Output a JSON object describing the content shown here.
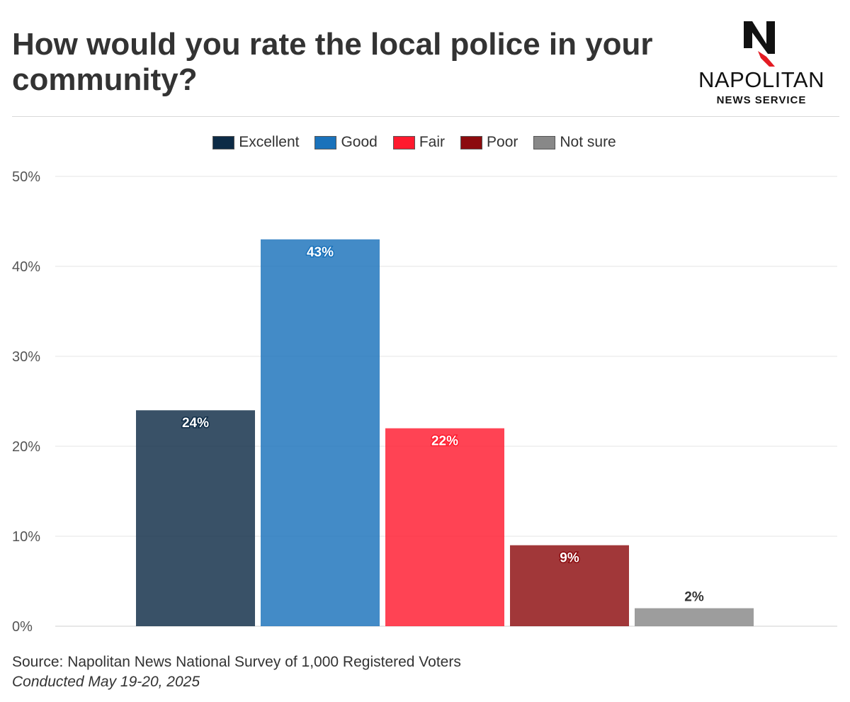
{
  "title": "How would you rate the local police in your community?",
  "brand": {
    "name": "NAPOLITAN",
    "sub": "NEWS SERVICE",
    "mark_letter": "N",
    "colors": {
      "dark": "#111111",
      "accent": "#e31b23"
    }
  },
  "chart_data": {
    "type": "bar",
    "categories": [
      "Excellent",
      "Good",
      "Fair",
      "Poor",
      "Not sure"
    ],
    "values": [
      24,
      43,
      22,
      9,
      2
    ],
    "value_labels": [
      "24%",
      "43%",
      "22%",
      "9%",
      "2%"
    ],
    "colors": [
      "#0d2b46",
      "#1a72bb",
      "#ff1a2e",
      "#8c0b0e",
      "#888888"
    ],
    "legend_position": "top-center",
    "ylim": [
      0,
      50
    ],
    "yticks": [
      0,
      10,
      20,
      30,
      40,
      50
    ],
    "ytick_labels": [
      "0%",
      "10%",
      "20%",
      "30%",
      "40%",
      "50%"
    ],
    "xlabel": "",
    "ylabel": "",
    "grid": true
  },
  "footer": {
    "source": "Source: Napolitan News National Survey of 1,000 Registered Voters",
    "conducted": "Conducted May 19-20, 2025"
  }
}
